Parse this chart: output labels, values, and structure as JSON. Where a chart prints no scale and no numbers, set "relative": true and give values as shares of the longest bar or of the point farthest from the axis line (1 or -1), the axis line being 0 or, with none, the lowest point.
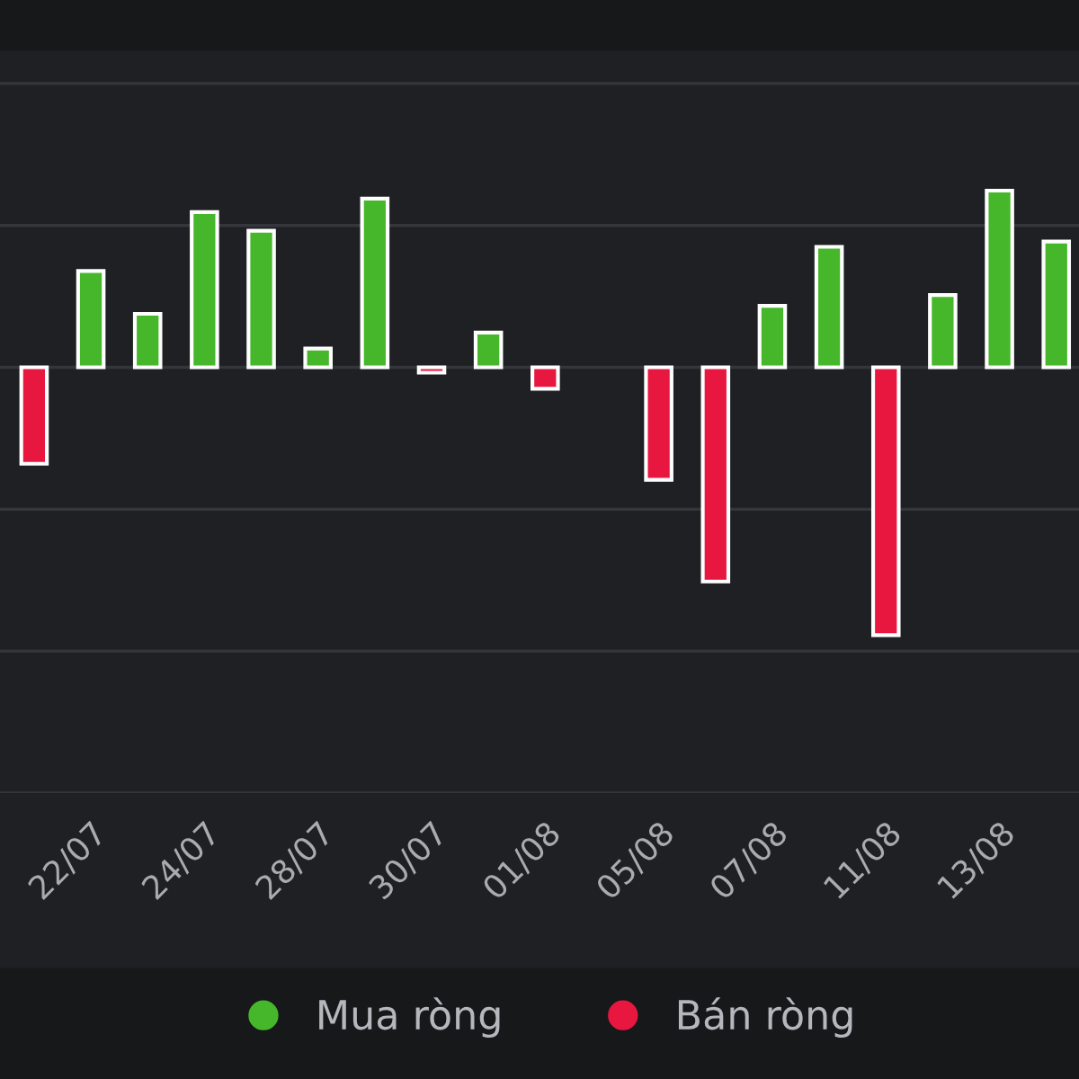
{
  "chart_data": {
    "type": "bar",
    "relative": true,
    "grid": "y",
    "legend": "bottom",
    "categories": [
      null,
      "22/07",
      null,
      "24/07",
      null,
      "28/07",
      null,
      "30/07",
      null,
      "01/08",
      null,
      "05/08",
      null,
      "07/08",
      null,
      "11/08",
      null,
      "13/08",
      null
    ],
    "series": [
      {
        "name": "Mua ròng",
        "color": "#46b72b",
        "values": [
          null,
          0.36,
          0.2,
          0.58,
          0.51,
          0.07,
          0.63,
          null,
          0.13,
          null,
          null,
          null,
          null,
          0.23,
          0.45,
          null,
          0.27,
          0.66,
          0.47
        ]
      },
      {
        "name": "Bán ròng",
        "color": "#e8173f",
        "values": [
          -0.36,
          null,
          null,
          null,
          null,
          null,
          null,
          -0.02,
          null,
          -0.08,
          null,
          -0.42,
          -0.8,
          null,
          null,
          -1,
          null,
          null,
          null
        ]
      }
    ]
  }
}
